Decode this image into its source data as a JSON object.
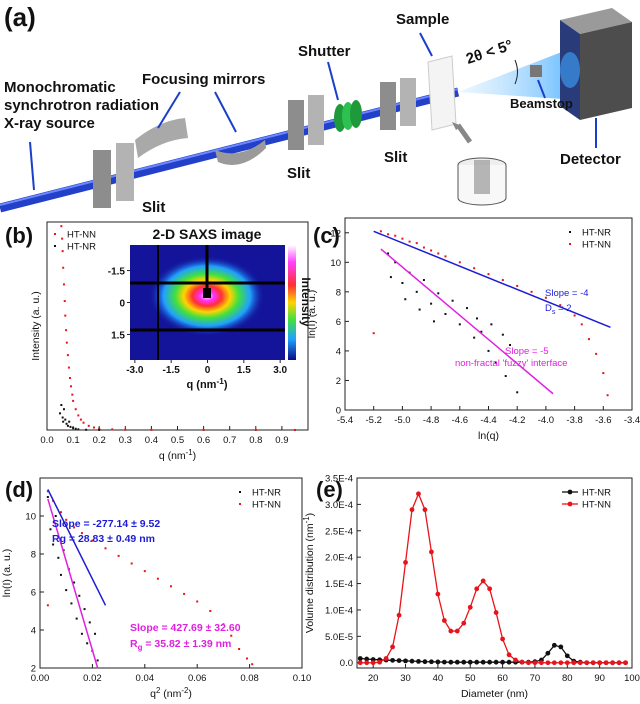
{
  "panel_a": {
    "label": "(a)",
    "source": [
      "Monochromatic",
      "synchrotron radiation",
      "X-ray source"
    ],
    "mirrors": "Focusing mirrors",
    "shutter": "Shutter",
    "sample": "Sample",
    "angle": "2θ < 5°",
    "beamstop": "Beamstop",
    "detector": "Detector",
    "slits": [
      "Slit",
      "Slit",
      "Slit"
    ]
  },
  "chart_data": [
    {
      "type": "scatter",
      "panel_label": "(b)",
      "xlabel": [
        {
          "text": "q (nm"
        },
        {
          "sup": "-1"
        },
        {
          "text": ")"
        }
      ],
      "ylabel": "Intensity (a. u.)",
      "xlim": [
        0,
        1.0
      ],
      "ylim": [
        0,
        100
      ],
      "xticks": [
        {
          "value": 0,
          "label": "0.0"
        },
        0.1,
        0.2,
        0.3,
        0.4,
        0.5,
        0.6,
        0.7,
        0.8,
        0.9
      ],
      "legend": "upper left",
      "series": [
        {
          "name": "HT-NN",
          "color": "#e8141b",
          "x": [
            0.055,
            0.058,
            0.06,
            0.062,
            0.065,
            0.068,
            0.07,
            0.073,
            0.076,
            0.08,
            0.084,
            0.088,
            0.092,
            0.097,
            0.1,
            0.11,
            0.12,
            0.13,
            0.14,
            0.16,
            0.18,
            0.2,
            0.25,
            0.3,
            0.4,
            0.6,
            0.8,
            0.95
          ],
          "values": [
            98,
            92,
            86,
            78,
            70,
            62,
            55,
            48,
            42,
            36,
            30,
            25,
            21,
            17,
            14,
            10,
            7,
            5,
            3.5,
            2,
            1.2,
            0.7,
            0.3,
            0.1,
            0.05,
            0.02,
            0.01,
            0.01
          ]
        },
        {
          "name": "HT-NR",
          "color": "#111111",
          "x": [
            0.05,
            0.055,
            0.06,
            0.062,
            0.065,
            0.07,
            0.075,
            0.08,
            0.085,
            0.09,
            0.1,
            0.11,
            0.12,
            0.15,
            0.2
          ],
          "values": [
            8,
            12,
            6,
            4,
            10,
            5,
            3,
            2,
            4,
            1.5,
            1,
            0.6,
            0.3,
            0.1,
            0.05
          ]
        }
      ],
      "inset": {
        "title": "2-D SAXS image",
        "xlabel": [
          {
            "text": "q (nm"
          },
          {
            "sup": "-1"
          },
          {
            "text": ")"
          }
        ],
        "colorbar_label": "Intensity",
        "xlim": [
          -3.2,
          3.2
        ],
        "ylim": [
          2.7,
          -2.7
        ],
        "xticks": [
          {
            "value": -3,
            "label": "-3.0"
          },
          -1.5,
          0,
          1.5,
          {
            "value": 3,
            "label": "3.0"
          }
        ],
        "yticks": [
          -1.5,
          0,
          1.5
        ]
      }
    },
    {
      "type": "scatter",
      "panel_label": "(c)",
      "xlabel": "ln(q)",
      "ylabel": "ln(I) (a. u.)",
      "xlim": [
        -5.4,
        -3.4
      ],
      "ylim": [
        0,
        13
      ],
      "xticks": [
        -5.4,
        -5.2,
        {
          "value": -5,
          "label": "-5.0"
        },
        -4.8,
        -4.6,
        -4.4,
        -4.2,
        {
          "value": -4,
          "label": "-4.0"
        },
        -3.8,
        -3.6,
        -3.4
      ],
      "yticks": [
        0,
        2,
        4,
        6,
        8,
        10,
        12
      ],
      "legend": "upper right",
      "series": [
        {
          "name": "HT-NR",
          "color": "#111111",
          "x": [
            -5.1,
            -5.08,
            -5.05,
            -5.0,
            -4.98,
            -4.95,
            -4.9,
            -4.88,
            -4.85,
            -4.8,
            -4.78,
            -4.75,
            -4.7,
            -4.65,
            -4.6,
            -4.55,
            -4.5,
            -4.48,
            -4.45,
            -4.4,
            -4.38,
            -4.35,
            -4.3,
            -4.28,
            -4.25,
            -4.2
          ],
          "values": [
            10.6,
            9.0,
            10.0,
            8.6,
            7.5,
            9.3,
            8.0,
            6.8,
            8.8,
            7.2,
            6.0,
            7.9,
            6.5,
            7.4,
            5.8,
            6.9,
            4.9,
            6.2,
            5.3,
            4.0,
            5.8,
            3.2,
            5.1,
            2.3,
            4.4,
            1.2
          ]
        },
        {
          "name": "HT-NN",
          "color": "#e8141b",
          "x": [
            -5.2,
            -5.15,
            -5.1,
            -5.05,
            -5.0,
            -4.95,
            -4.9,
            -4.85,
            -4.8,
            -4.75,
            -4.7,
            -4.6,
            -4.5,
            -4.4,
            -4.3,
            -4.2,
            -4.1,
            -4.0,
            -3.9,
            -3.8,
            -3.75,
            -3.7,
            -3.65,
            -3.6,
            -3.57
          ],
          "values": [
            5.2,
            12.1,
            11.9,
            11.8,
            11.6,
            11.4,
            11.3,
            11.0,
            10.8,
            10.6,
            10.4,
            10.0,
            9.6,
            9.2,
            8.8,
            8.4,
            8.0,
            7.6,
            7.1,
            6.4,
            5.8,
            4.8,
            3.8,
            2.5,
            1.0
          ]
        }
      ],
      "fits": [
        {
          "color": "#1c1cd6",
          "x": [
            -5.2,
            -3.55
          ],
          "y": [
            12.1,
            5.6
          ]
        },
        {
          "color": "#e020e0",
          "x": [
            -5.15,
            -3.95
          ],
          "y": [
            10.9,
            1.1
          ]
        }
      ],
      "annotations": [
        {
          "color": "#1c1cd6",
          "parts": [
            {
              "text": "Slope = -4"
            }
          ]
        },
        {
          "color": "#1c1cd6",
          "parts": [
            {
              "text": "D"
            },
            {
              "sub": "s"
            },
            {
              "text": " = 2"
            }
          ]
        },
        {
          "color": "#e020e0",
          "parts": [
            {
              "text": "Slope = -5"
            }
          ]
        },
        {
          "color": "#e020e0",
          "parts": [
            {
              "text": "non-fractal 'fuzzy' interface"
            }
          ]
        }
      ]
    },
    {
      "type": "scatter",
      "panel_label": "(d)",
      "xlabel": [
        {
          "text": "q"
        },
        {
          "sup": "2"
        },
        {
          "text": " (nm"
        },
        {
          "sup": "-2"
        },
        {
          "text": ")"
        }
      ],
      "ylabel": "ln(I) (a. u.)",
      "xlim": [
        0,
        0.1
      ],
      "ylim": [
        2,
        12
      ],
      "xticks": [
        {
          "value": 0,
          "label": "0.00"
        },
        {
          "value": 0.02,
          "label": "0.02"
        },
        {
          "value": 0.04,
          "label": "0.04"
        },
        {
          "value": 0.06,
          "label": "0.06"
        },
        {
          "value": 0.08,
          "label": "0.08"
        },
        {
          "value": 0.1,
          "label": "0.10"
        }
      ],
      "yticks": [
        2,
        4,
        6,
        8,
        10
      ],
      "legend": "upper right",
      "series": [
        {
          "name": "HT-NR",
          "color": "#111111",
          "x": [
            0.003,
            0.004,
            0.005,
            0.006,
            0.007,
            0.008,
            0.009,
            0.01,
            0.011,
            0.012,
            0.013,
            0.014,
            0.015,
            0.016,
            0.017,
            0.018,
            0.019,
            0.02,
            0.021,
            0.022
          ],
          "values": [
            11.0,
            9.3,
            8.5,
            10.0,
            7.8,
            6.9,
            8.2,
            6.1,
            7.2,
            5.4,
            6.5,
            4.6,
            5.8,
            3.8,
            5.1,
            3.3,
            4.4,
            2.9,
            3.8,
            2.4
          ]
        },
        {
          "name": "HT-NN",
          "color": "#e8141b",
          "x": [
            0.003,
            0.003,
            0.005,
            0.008,
            0.01,
            0.013,
            0.016,
            0.02,
            0.025,
            0.03,
            0.035,
            0.04,
            0.045,
            0.05,
            0.055,
            0.06,
            0.065,
            0.07,
            0.073,
            0.076,
            0.079,
            0.081
          ],
          "values": [
            11.3,
            5.3,
            10.8,
            10.2,
            9.8,
            9.4,
            9.1,
            8.7,
            8.3,
            7.9,
            7.5,
            7.1,
            6.7,
            6.3,
            5.9,
            5.5,
            5.0,
            4.3,
            3.7,
            3.0,
            2.5,
            2.2
          ]
        }
      ],
      "fits": [
        {
          "color": "#1c1cd6",
          "x": [
            0.003,
            0.025
          ],
          "y": [
            11.4,
            5.3
          ]
        },
        {
          "color": "#e020e0",
          "x": [
            0.003,
            0.022
          ],
          "y": [
            10.9,
            2.0
          ]
        }
      ],
      "annotations": [
        {
          "color": "#1c1cd6",
          "parts": [
            {
              "text": "Slope = -277.14 ± 9.52"
            }
          ]
        },
        {
          "color": "#1c1cd6",
          "parts": [
            {
              "text": "Rg = 28.83 ± 0.49 nm"
            }
          ]
        },
        {
          "color": "#e020e0",
          "parts": [
            {
              "text": "Slope = 427.69 ± 32.60"
            }
          ]
        },
        {
          "color": "#e020e0",
          "parts": [
            {
              "text": "R"
            },
            {
              "sub": "g"
            },
            {
              "text": " = 35.82 ± 1.39 nm"
            }
          ]
        }
      ]
    },
    {
      "type": "line",
      "panel_label": "(e)",
      "xlabel": "Diameter (nm)",
      "ylabel": [
        {
          "text": "Volume distribution (nm"
        },
        {
          "sup": "-1"
        },
        {
          "text": ")"
        }
      ],
      "xlim": [
        15,
        100
      ],
      "ylim": [
        -1e-05,
        0.00035
      ],
      "xticks": [
        20,
        30,
        40,
        50,
        60,
        70,
        80,
        90,
        100
      ],
      "yticks": [
        {
          "value": 0,
          "label": "0.0"
        },
        {
          "value": 5e-05,
          "label": "5.0E-5"
        },
        {
          "value": 0.0001,
          "label": "1.0E-4"
        },
        {
          "value": 0.00015,
          "label": "1.5E-4"
        },
        {
          "value": 0.0002,
          "label": "2.0E-4"
        },
        {
          "value": 0.00025,
          "label": "2.5E-4"
        },
        {
          "value": 0.0003,
          "label": "3.0E-4"
        },
        {
          "value": 0.00035,
          "label": "3.5E-4"
        }
      ],
      "legend": "upper right",
      "x": [
        16,
        18,
        20,
        22,
        24,
        26,
        28,
        30,
        32,
        34,
        36,
        38,
        40,
        42,
        44,
        46,
        48,
        50,
        52,
        54,
        56,
        58,
        60,
        62,
        64,
        66,
        68,
        70,
        72,
        74,
        76,
        78,
        80,
        82,
        84,
        86,
        88,
        90,
        92,
        94,
        96,
        98
      ],
      "series": [
        {
          "name": "HT-NR",
          "color": "#111111",
          "values": [
            8e-06,
            7e-06,
            6e-06,
            5.5e-06,
            5e-06,
            4.5e-06,
            4e-06,
            3.5e-06,
            3e-06,
            2.5e-06,
            2e-06,
            1.8e-06,
            1.5e-06,
            1.2e-06,
            1e-06,
            1e-06,
            1e-06,
            1e-06,
            1e-06,
            1e-06,
            1e-06,
            1e-06,
            1e-06,
            1e-06,
            1e-06,
            1e-06,
            1e-06,
            2e-06,
            5e-06,
            1.8e-05,
            3.3e-05,
            3e-05,
            1.3e-05,
            3e-06,
            1e-06,
            0,
            0,
            0,
            0,
            0,
            0,
            0
          ]
        },
        {
          "name": "HT-NN",
          "color": "#e8141b",
          "values": [
            0,
            0,
            0,
            1e-06,
            8e-06,
            3e-05,
            9e-05,
            0.00019,
            0.00029,
            0.00032,
            0.00029,
            0.00021,
            0.00013,
            8e-05,
            6e-05,
            6e-05,
            7.5e-05,
            0.000105,
            0.00014,
            0.000155,
            0.00014,
            9.5e-05,
            4.5e-05,
            1.5e-05,
            5e-06,
            1e-06,
            0,
            0,
            0,
            0,
            0,
            0,
            0,
            0,
            0,
            0,
            0,
            0,
            0,
            0,
            0,
            0
          ]
        }
      ]
    }
  ]
}
